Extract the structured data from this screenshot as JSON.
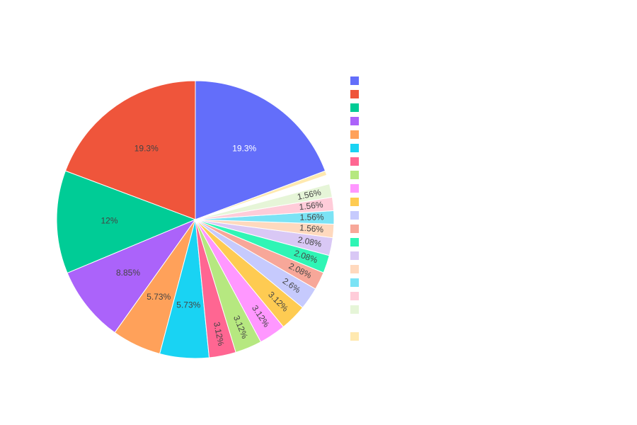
{
  "chart_data": {
    "type": "pie",
    "values": [
      19.3,
      19.3,
      12,
      8.85,
      5.73,
      5.73,
      3.12,
      3.12,
      3.12,
      3.12,
      2.6,
      2.08,
      2.08,
      2.08,
      1.56,
      1.56,
      1.56,
      1.56,
      1.04,
      0.52
    ],
    "value_labels": [
      "19.3%",
      "19.3%",
      "12%",
      "8.85%",
      "5.73%",
      "5.73%",
      "3.12%",
      "3.12%",
      "3.12%",
      "3.12%",
      "2.6%",
      "2.08%",
      "2.08%",
      "2.08%",
      "1.56%",
      "1.56%",
      "1.56%",
      "1.56%",
      null,
      null
    ],
    "colors": [
      "#636efa",
      "#ef553b",
      "#00cc96",
      "#ab63fa",
      "#ffa15a",
      "#19d3f3",
      "#ff6692",
      "#b6e880",
      "#ff97ff",
      "#fecb52",
      "#c6cafd",
      "#f7a799",
      "#2ff5b5",
      "#d9c8f5",
      "#ffd9be",
      "#7be3f5",
      "#ffccd9",
      "#e6f5d8",
      "#ffffff",
      "#ffe9b0"
    ],
    "direction": "counterclockwise",
    "legend": "right"
  }
}
